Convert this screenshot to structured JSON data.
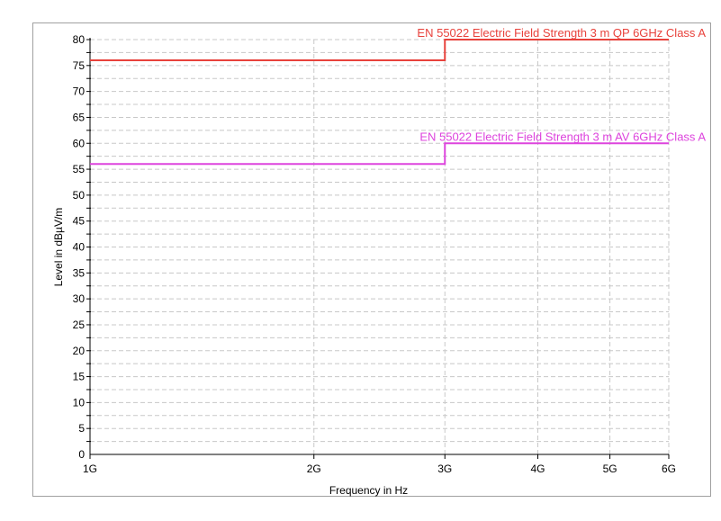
{
  "chart_data": {
    "type": "line",
    "title": "",
    "xlabel": "Frequency in Hz",
    "ylabel": "Level in dBµV/m",
    "x_scale": "log",
    "xlim": [
      1000000000.0,
      6000000000.0
    ],
    "ylim": [
      0,
      80
    ],
    "x_ticks": [
      {
        "value": 1000000000.0,
        "label": "1G"
      },
      {
        "value": 2000000000.0,
        "label": "2G"
      },
      {
        "value": 3000000000.0,
        "label": "3G"
      },
      {
        "value": 4000000000.0,
        "label": "4G"
      },
      {
        "value": 5000000000.0,
        "label": "5G"
      },
      {
        "value": 6000000000.0,
        "label": "6G"
      }
    ],
    "y_ticks": [
      0,
      5,
      10,
      15,
      20,
      25,
      30,
      35,
      40,
      45,
      50,
      55,
      60,
      65,
      70,
      75,
      80
    ],
    "y_minor_step": 2.5,
    "grid": true,
    "series": [
      {
        "name": "EN 55022 Electric Field Strength 3 m QP 6GHz Class A",
        "color": "#e8423c",
        "x": [
          1000000000.0,
          3000000000.0,
          3000000000.0,
          6000000000.0
        ],
        "y": [
          76,
          76,
          80,
          80
        ]
      },
      {
        "name": "EN 55022 Electric Field Strength 3 m AV 6GHz Class A",
        "color": "#dd44dd",
        "x": [
          1000000000.0,
          3000000000.0,
          3000000000.0,
          6000000000.0
        ],
        "y": [
          56,
          56,
          60,
          60
        ]
      }
    ]
  }
}
